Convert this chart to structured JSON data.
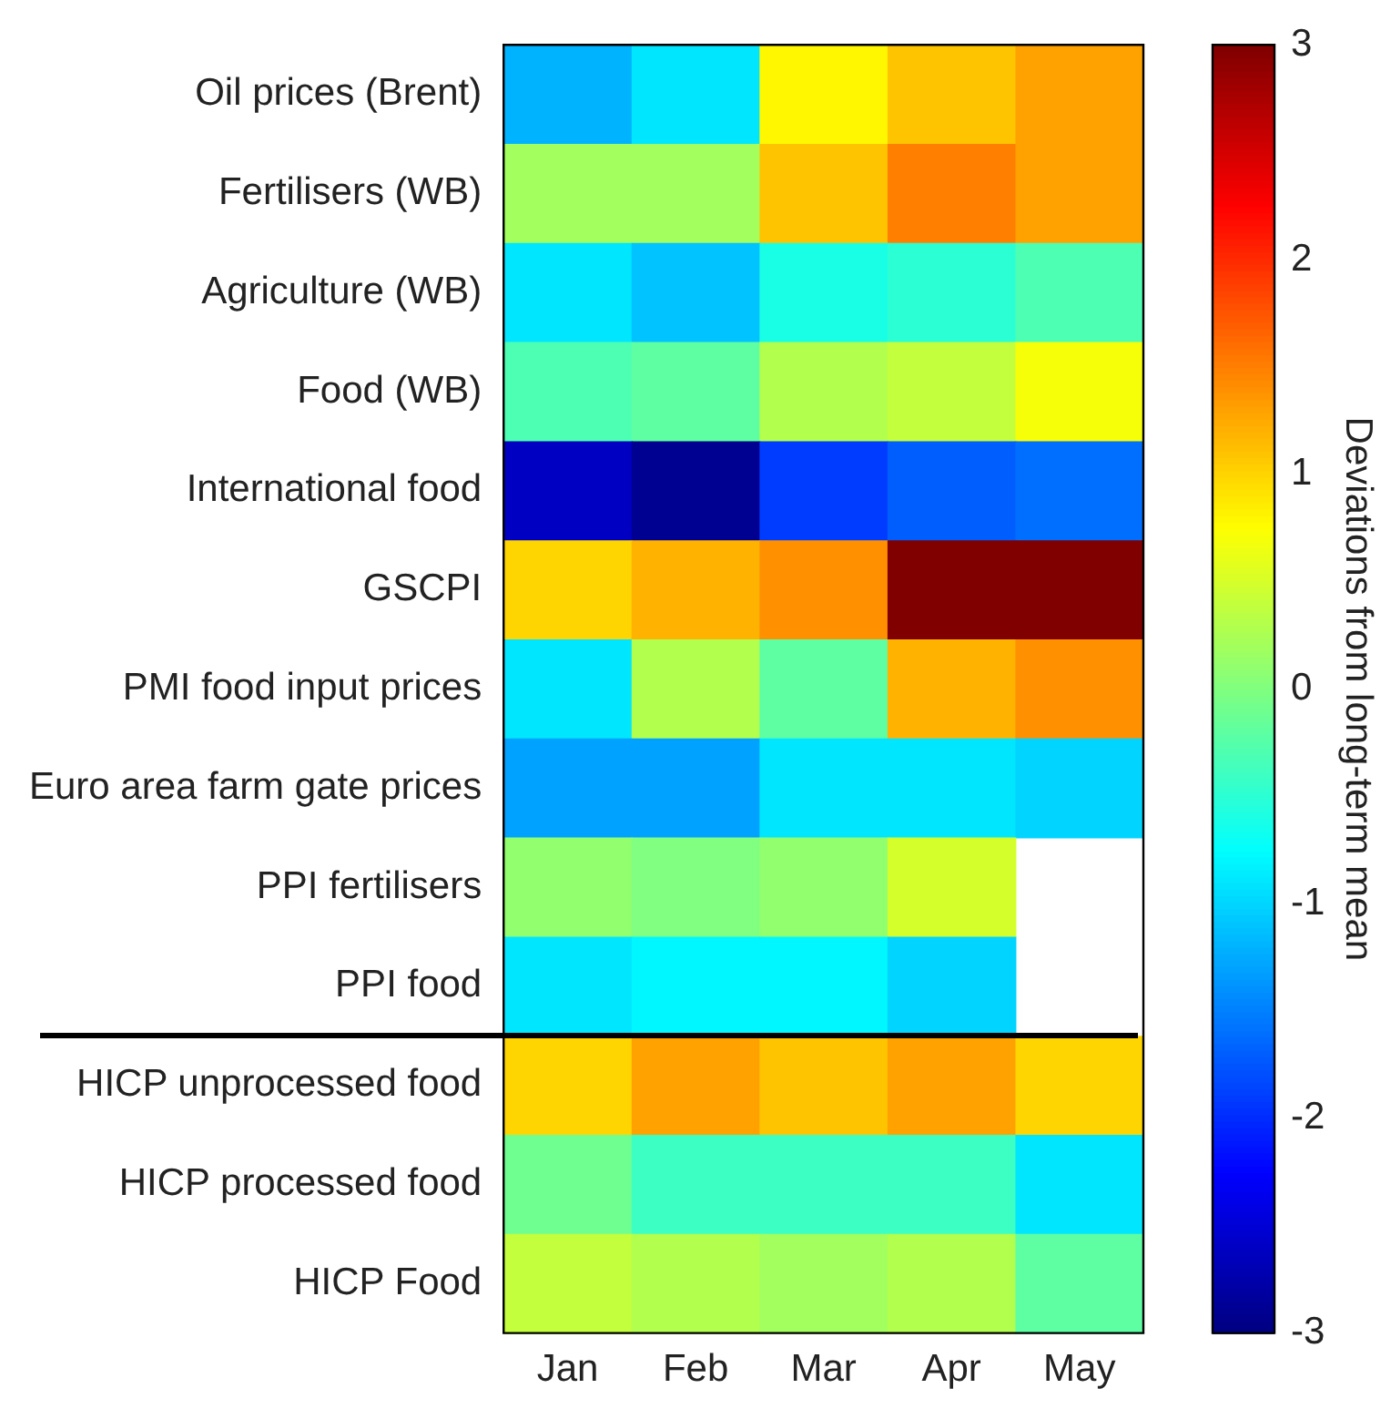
{
  "chart_data": {
    "type": "heatmap",
    "categories": [
      "Jan",
      "Feb",
      "Mar",
      "Apr",
      "May"
    ],
    "y_categories": [
      "Oil prices (Brent)",
      "Fertilisers (WB)",
      "Agriculture (WB)",
      "Food (WB)",
      "International food",
      "GSCPI",
      "PMI food input prices",
      "Euro area farm gate prices",
      "PPI fertilisers",
      "PPI food",
      "HICP unprocessed food",
      "HICP processed food",
      "HICP Food"
    ],
    "cells": [
      [
        -1.2,
        -0.9,
        0.8,
        1.1,
        1.3
      ],
      [
        0.2,
        0.2,
        1.1,
        1.5,
        1.3
      ],
      [
        -0.9,
        -1.1,
        -0.6,
        -0.5,
        -0.3
      ],
      [
        -0.3,
        -0.2,
        0.3,
        0.4,
        0.7
      ],
      [
        -2.6,
        -2.9,
        -1.9,
        -1.7,
        -1.6
      ],
      [
        1.0,
        1.2,
        1.4,
        3.0,
        3.0
      ],
      [
        -0.9,
        0.3,
        -0.2,
        1.2,
        1.4
      ],
      [
        -1.3,
        -1.3,
        -0.9,
        -0.9,
        -1.0
      ],
      [
        0.1,
        0.0,
        0.1,
        0.5,
        null
      ],
      [
        -0.9,
        -0.8,
        -0.8,
        -1.0,
        null
      ],
      [
        1.0,
        1.3,
        1.1,
        1.3,
        1.0
      ],
      [
        -0.1,
        -0.4,
        -0.4,
        -0.4,
        -0.9
      ],
      [
        0.4,
        0.3,
        0.2,
        0.3,
        -0.2
      ]
    ],
    "clim": [
      -3,
      3
    ],
    "cticks": [
      -3,
      -2,
      -1,
      0,
      1,
      2,
      3
    ],
    "clabel": "Deviations from long-term mean"
  }
}
